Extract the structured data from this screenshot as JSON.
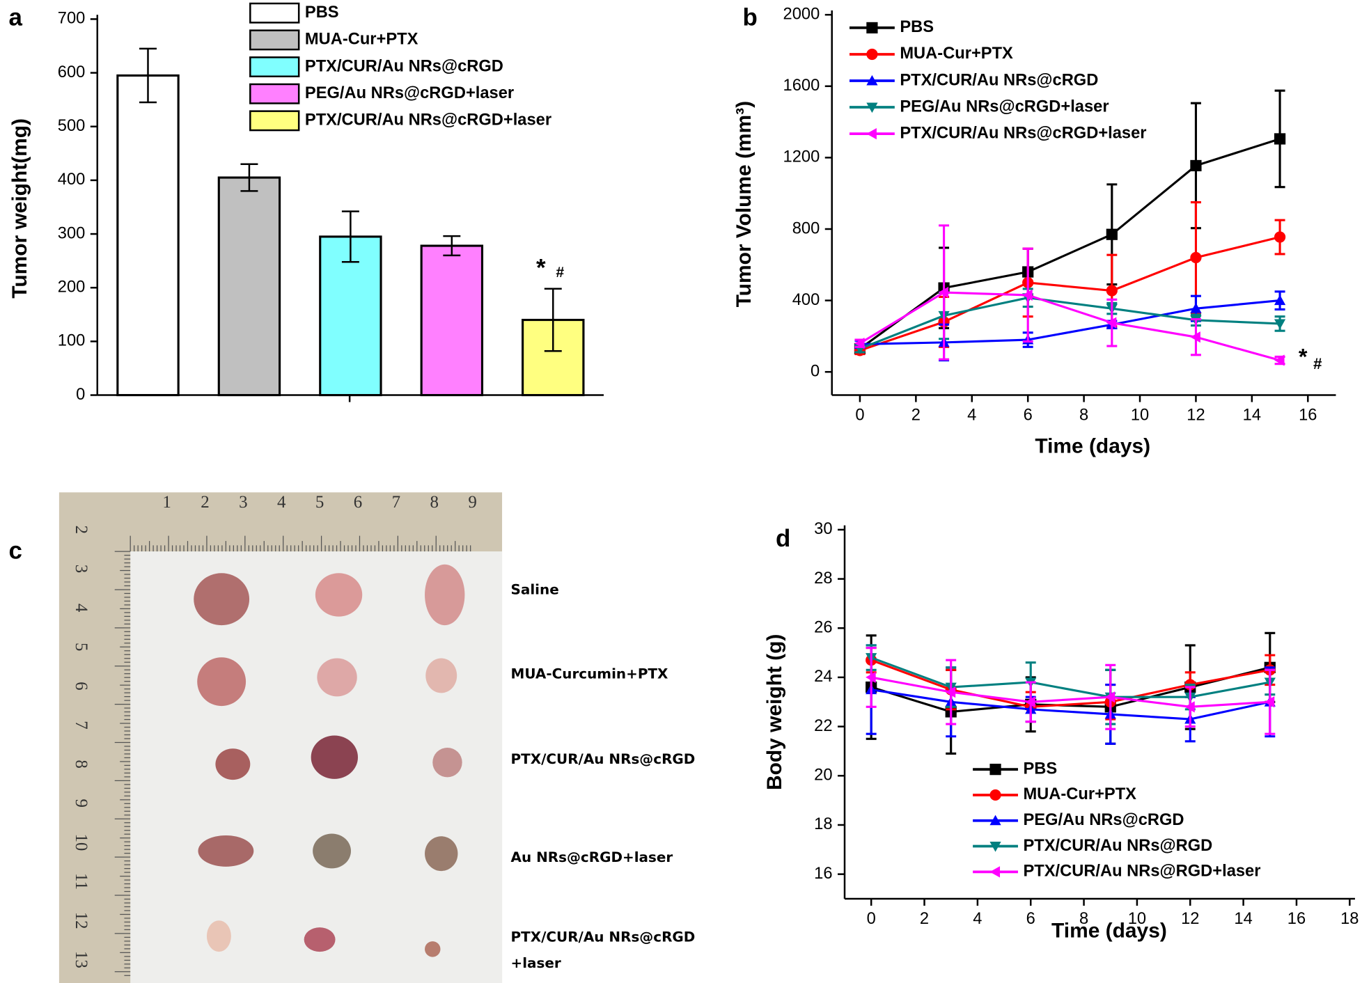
{
  "chart_data": [
    {
      "type": "bar",
      "panel_label": "a",
      "ylabel": "Tumor weight(mg)",
      "categories": [
        null
      ],
      "series": [
        {
          "name": "PBS",
          "color": "#ffffff",
          "values": [
            595
          ],
          "errors": [
            50
          ]
        },
        {
          "name": "MUA-Cur+PTX",
          "color": "#c0c0c0",
          "values": [
            405
          ],
          "errors": [
            25
          ]
        },
        {
          "name": "PTX/CUR/Au NRs@cRGD",
          "color": "#80ffff",
          "values": [
            295
          ],
          "errors": [
            47
          ]
        },
        {
          "name": "PEG/Au NRs@cRGD+laser",
          "color": "#ff80ff",
          "values": [
            278
          ],
          "errors": [
            18
          ]
        },
        {
          "name": "PTX/CUR/Au NRs@cRGD+laser",
          "color": "#ffff80",
          "values": [
            140
          ],
          "errors": [
            58
          ]
        }
      ],
      "annotations": [
        "*",
        "#"
      ],
      "ylim": [
        0,
        700
      ],
      "yticks": [
        0,
        100,
        200,
        300,
        400,
        500,
        600,
        700
      ]
    },
    {
      "type": "line",
      "panel_label": "b",
      "ylabel": "Tumor Volume (mm³)",
      "xlabel": "Time (days)",
      "x": [
        0,
        3,
        6,
        9,
        12,
        15
      ],
      "series": [
        {
          "name": "PBS",
          "color": "#000000",
          "marker": "square",
          "values": [
            130,
            470,
            560,
            770,
            1155,
            1305
          ],
          "errors": [
            20,
            225,
            130,
            280,
            350,
            270
          ]
        },
        {
          "name": "MUA-Cur+PTX",
          "color": "#ff0000",
          "marker": "circle",
          "values": [
            120,
            280,
            500,
            455,
            640,
            755
          ],
          "errors": [
            20,
            140,
            190,
            200,
            310,
            95
          ]
        },
        {
          "name": "PTX/CUR/Au NRs@cRGD",
          "color": "#0000ff",
          "marker": "triangle-up",
          "values": [
            155,
            165,
            180,
            265,
            355,
            400
          ],
          "errors": [
            20,
            100,
            40,
            20,
            70,
            50
          ]
        },
        {
          "name": "PEG/Au NRs@cRGD+laser",
          "color": "#008080",
          "marker": "triangle-down",
          "values": [
            130,
            315,
            415,
            355,
            290,
            270
          ],
          "errors": [
            20,
            130,
            50,
            30,
            30,
            40
          ]
        },
        {
          "name": "PTX/CUR/Au NRs@cRGD+laser",
          "color": "#ff00ff",
          "marker": "triangle-left",
          "values": [
            160,
            445,
            430,
            275,
            195,
            65
          ],
          "errors": [
            20,
            375,
            260,
            130,
            100,
            20
          ]
        }
      ],
      "annotations": [
        "*",
        "#"
      ],
      "xlim": [
        -1,
        17
      ],
      "xticks": [
        0,
        2,
        4,
        6,
        8,
        10,
        12,
        14,
        16
      ],
      "ylim": [
        -130,
        2000
      ],
      "yticks": [
        0,
        400,
        800,
        1200,
        1600,
        2000
      ]
    },
    {
      "type": "line",
      "panel_label": "d",
      "ylabel": "Body weight (g)",
      "xlabel": "Time (days)",
      "x": [
        0,
        3,
        6,
        9,
        12,
        15
      ],
      "series": [
        {
          "name": "PBS",
          "color": "#000000",
          "marker": "square",
          "values": [
            23.6,
            22.6,
            22.9,
            22.8,
            23.6,
            24.4
          ],
          "errors": [
            2.1,
            1.7,
            1.1,
            1.5,
            1.7,
            1.4
          ]
        },
        {
          "name": "MUA-Cur+PTX",
          "color": "#ff0000",
          "marker": "circle",
          "values": [
            24.7,
            23.5,
            22.8,
            23.0,
            23.7,
            24.3
          ],
          "errors": [
            0.5,
            0.8,
            0.6,
            0.7,
            0.5,
            0.6
          ]
        },
        {
          "name": "PEG/Au NRs@cRGD",
          "color": "#0000ff",
          "marker": "triangle-up",
          "values": [
            23.5,
            23.0,
            22.7,
            22.5,
            22.3,
            23.0
          ],
          "errors": [
            1.8,
            1.4,
            0.5,
            1.2,
            0.9,
            1.4
          ]
        },
        {
          "name": "PTX/CUR/Au NRs@RGD",
          "color": "#008080",
          "marker": "triangle-down",
          "values": [
            24.8,
            23.6,
            23.8,
            23.2,
            23.2,
            23.8
          ],
          "errors": [
            0.5,
            0.8,
            0.8,
            1.1,
            0.5,
            0.5
          ]
        },
        {
          "name": "PTX/CUR/Au NRs@RGD+laser",
          "color": "#ff00ff",
          "marker": "triangle-left",
          "values": [
            24.0,
            23.4,
            23.0,
            23.2,
            22.8,
            23.0
          ],
          "errors": [
            1.2,
            1.3,
            0.8,
            1.3,
            0.8,
            1.3
          ]
        }
      ],
      "xlim": [
        -1,
        18.2
      ],
      "xticks": [
        0,
        2,
        4,
        6,
        8,
        10,
        12,
        14,
        16,
        18
      ],
      "ylim": [
        15,
        30
      ],
      "yticks": [
        16,
        18,
        20,
        22,
        24,
        26,
        28,
        30
      ]
    }
  ],
  "photo": {
    "panel_label": "c",
    "ruler_top": [
      1,
      2,
      3,
      4,
      5,
      6,
      7,
      8,
      9
    ],
    "ruler_left": [
      2,
      3,
      4,
      5,
      6,
      7,
      8,
      9,
      10,
      11,
      12,
      13
    ],
    "labels": [
      [
        "Saline"
      ],
      [
        "MUA-Curcumin+PTX"
      ],
      [
        "PTX/CUR/Au NRs@cRGD"
      ],
      [
        "Au NRs@cRGD+laser"
      ],
      [
        "PTX/CUR/Au NRs@cRGD",
        "+laser"
      ]
    ]
  }
}
